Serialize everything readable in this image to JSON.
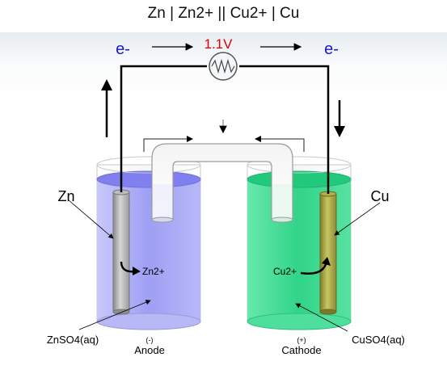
{
  "title": "Zn | Zn2+ || Cu2+ | Cu",
  "voltage": "1.1V",
  "electron_left": "e-",
  "electron_right": "e-",
  "labels": {
    "zn_electrode": "Zn",
    "cu_electrode": "Cu",
    "zn_ion": "Zn2+",
    "cu_ion": "Cu2+",
    "znso4": "ZnSO4(aq)",
    "cuso4": "CuSO4(aq)",
    "anode_sign": "(-)",
    "anode": "Anode",
    "cathode_sign": "(+)",
    "cathode": "Cathode"
  },
  "colors": {
    "voltage": "#e00000",
    "electron": "#1a1acc",
    "anode_solution": "#8f8ff0",
    "cathode_solution": "#2fd88a",
    "zn_electrode": "#a9a9a9",
    "cu_electrode": "#9a9a40"
  },
  "icons": {
    "meter": "resistor-zigzag-icon"
  }
}
